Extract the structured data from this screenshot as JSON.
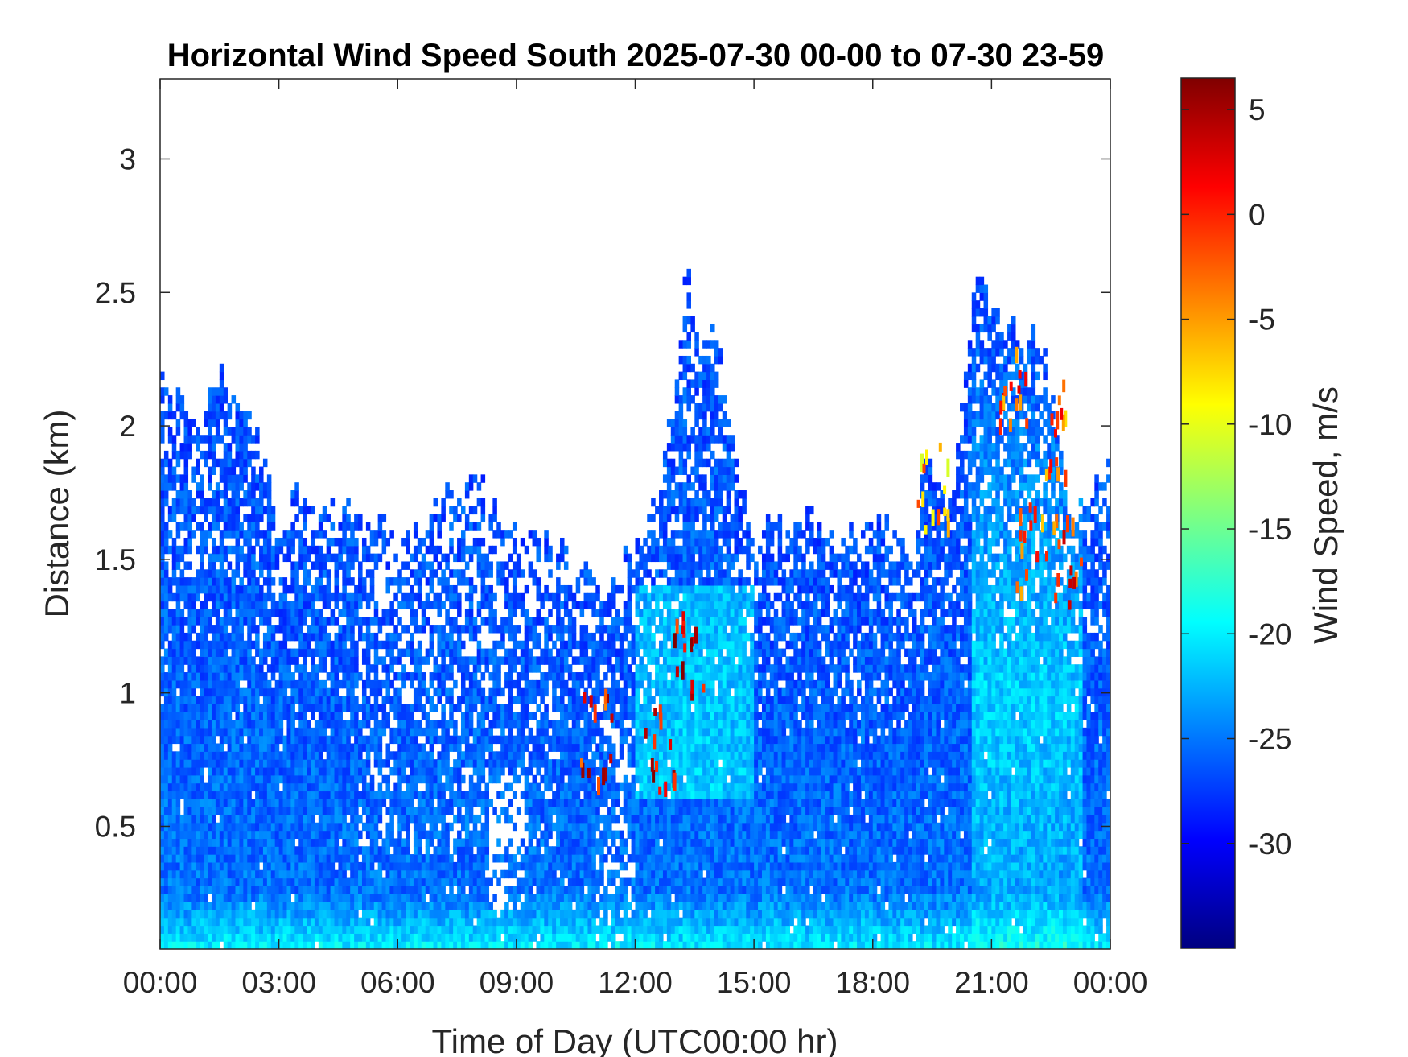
{
  "chart_data": {
    "type": "heatmap",
    "title": "Horizontal Wind Speed South 2025-07-30 00-00 to 07-30 23-59",
    "xlabel": "Time of Day (UTC00:00 hr)",
    "ylabel": "Distance (km)",
    "x_ticks": [
      "00:00",
      "03:00",
      "06:00",
      "09:00",
      "12:00",
      "15:00",
      "18:00",
      "21:00",
      "00:00"
    ],
    "xlim_hours": [
      0,
      24
    ],
    "y_ticks": [
      "0.5",
      "1",
      "1.5",
      "2",
      "2.5",
      "3"
    ],
    "ylim_km": [
      0.04,
      3.3
    ],
    "colorbar": {
      "label": "Wind Speed, m/s",
      "ticks": [
        "5",
        "0",
        "-5",
        "-10",
        "-15",
        "-20",
        "-25",
        "-30"
      ],
      "clim": [
        -35,
        6.5
      ],
      "colormap": "jet"
    },
    "data_top_km_by_hour": [
      [
        0,
        2.2
      ],
      [
        0.5,
        2.12
      ],
      [
        1,
        2.05
      ],
      [
        1.5,
        2.2
      ],
      [
        2,
        2.08
      ],
      [
        2.5,
        1.95
      ],
      [
        3,
        1.6
      ],
      [
        3.5,
        1.75
      ],
      [
        4,
        1.65
      ],
      [
        5,
        1.7
      ],
      [
        6,
        1.6
      ],
      [
        6.5,
        1.6
      ],
      [
        7,
        1.75
      ],
      [
        7.5,
        1.82
      ],
      [
        8,
        1.8
      ],
      [
        8.5,
        1.7
      ],
      [
        9,
        1.65
      ],
      [
        9.5,
        1.6
      ],
      [
        10,
        1.55
      ],
      [
        10.5,
        1.45
      ],
      [
        11,
        1.42
      ],
      [
        11.5,
        1.42
      ],
      [
        12,
        1.55
      ],
      [
        12.5,
        1.7
      ],
      [
        13,
        2.1
      ],
      [
        13.3,
        2.65
      ],
      [
        13.6,
        2.3
      ],
      [
        14,
        2.4
      ],
      [
        14.5,
        1.9
      ],
      [
        15,
        1.6
      ],
      [
        15.5,
        1.65
      ],
      [
        16,
        1.65
      ],
      [
        16.5,
        1.65
      ],
      [
        17,
        1.6
      ],
      [
        17.5,
        1.62
      ],
      [
        18,
        1.65
      ],
      [
        18.5,
        1.65
      ],
      [
        19,
        1.45
      ],
      [
        19.3,
        1.9
      ],
      [
        19.6,
        1.85
      ],
      [
        20,
        1.75
      ],
      [
        20.3,
        2.2
      ],
      [
        20.5,
        2.45
      ],
      [
        20.9,
        2.6
      ],
      [
        21.2,
        2.35
      ],
      [
        21.6,
        2.4
      ],
      [
        22,
        2.35
      ],
      [
        22.5,
        2.2
      ],
      [
        23,
        1.6
      ],
      [
        23.5,
        1.75
      ],
      [
        24,
        1.9
      ]
    ],
    "speed_profile_mps": {
      "near_surface": -20,
      "mid_column": -25,
      "upper_column": -28
    },
    "hotspots": [
      {
        "hour": 12.6,
        "km": 0.8,
        "speed": 3
      },
      {
        "hour": 13.3,
        "km": 1.15,
        "speed": 2
      },
      {
        "hour": 11.0,
        "km": 0.85,
        "speed": 1
      },
      {
        "hour": 19.5,
        "km": 1.78,
        "speed": -6
      },
      {
        "hour": 21.5,
        "km": 2.2,
        "speed": -2
      },
      {
        "hour": 22.0,
        "km": 1.55,
        "speed": -4
      },
      {
        "hour": 22.5,
        "km": 2.0,
        "speed": -3
      },
      {
        "hour": 22.9,
        "km": 1.5,
        "speed": -1
      }
    ]
  }
}
